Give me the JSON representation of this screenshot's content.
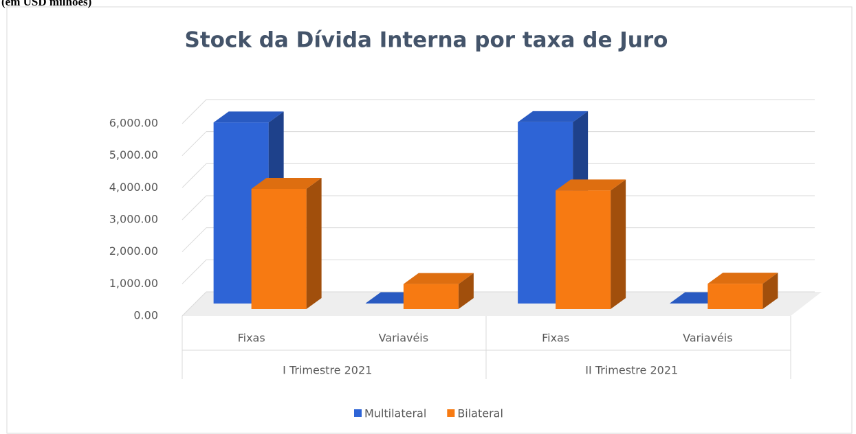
{
  "chart_data": {
    "type": "bar3d",
    "caption": "(em USD milhões)",
    "title": "Stock da Dívida Interna por taxa de Juro",
    "categories": [
      "Fixas",
      "Variavéis",
      "Fixas",
      "Variavéis"
    ],
    "groups": [
      "I Trimestre 2021",
      "II Trimestre 2021"
    ],
    "series": [
      {
        "name": "Multilateral",
        "color": "#2e64d6",
        "values": [
          5650,
          10,
          5660,
          10
        ]
      },
      {
        "name": "Bilateral",
        "color": "#f77a12",
        "values": [
          3750,
          780,
          3700,
          790
        ]
      }
    ],
    "ylim": [
      0,
      6000
    ],
    "yticks": [
      {
        "value": 0,
        "label": "0.00"
      },
      {
        "value": 1000,
        "label": "1,000.00"
      },
      {
        "value": 2000,
        "label": "2,000.00"
      },
      {
        "value": 3000,
        "label": "3,000.00"
      },
      {
        "value": 4000,
        "label": "4,000.00"
      },
      {
        "value": 5000,
        "label": "5,000.00"
      },
      {
        "value": 6000,
        "label": "6,000.00"
      }
    ],
    "grid": true,
    "legend": "bottom"
  }
}
